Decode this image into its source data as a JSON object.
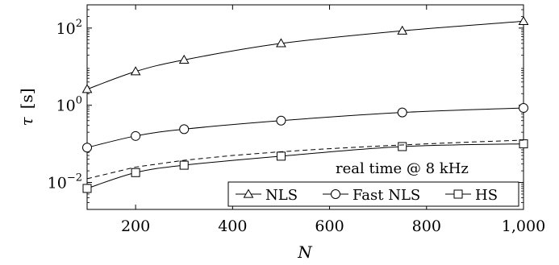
{
  "chart_data": {
    "type": "line",
    "xlabel": "N",
    "ylabel": {
      "symbol": "τ",
      "unit": "[s]"
    },
    "xlim": [
      100,
      1000
    ],
    "ylim": [
      0.002,
      400
    ],
    "y_scale": "log",
    "x_ticks": [
      200,
      400,
      600,
      800,
      1000
    ],
    "x_tick_labels": [
      "200",
      "400",
      "600",
      "800",
      "1,000"
    ],
    "y_ticks": [
      {
        "value": 0.01,
        "base": "10",
        "exp": "−2"
      },
      {
        "value": 1,
        "base": "10",
        "exp": "0"
      },
      {
        "value": 100,
        "base": "10",
        "exp": "2"
      }
    ],
    "grid": false,
    "legend_position": "bottom-right",
    "series": [
      {
        "name": "NLS",
        "marker": "triangle",
        "style": "solid",
        "color": "#000000",
        "x": [
          100,
          200,
          300,
          500,
          750,
          1000
        ],
        "y": [
          2.6,
          7.5,
          15,
          40,
          85,
          150
        ]
      },
      {
        "name": "Fast NLS",
        "marker": "circle",
        "style": "solid",
        "color": "#000000",
        "x": [
          100,
          200,
          300,
          500,
          750,
          1000
        ],
        "y": [
          0.08,
          0.16,
          0.24,
          0.4,
          0.65,
          0.85
        ]
      },
      {
        "name": "HS",
        "marker": "square",
        "style": "solid",
        "color": "#000000",
        "x": [
          100,
          200,
          300,
          500,
          750,
          1000
        ],
        "y": [
          0.007,
          0.018,
          0.028,
          0.048,
          0.085,
          0.1
        ]
      },
      {
        "marker": "none",
        "style": "dashed",
        "color": "#000000",
        "x": [
          100,
          200,
          300,
          400,
          500,
          600,
          700,
          800,
          900,
          1000
        ],
        "y": [
          0.0125,
          0.025,
          0.0375,
          0.05,
          0.0625,
          0.075,
          0.0875,
          0.1,
          0.1125,
          0.125
        ]
      }
    ],
    "annotation": "real time @ 8 kHz"
  }
}
